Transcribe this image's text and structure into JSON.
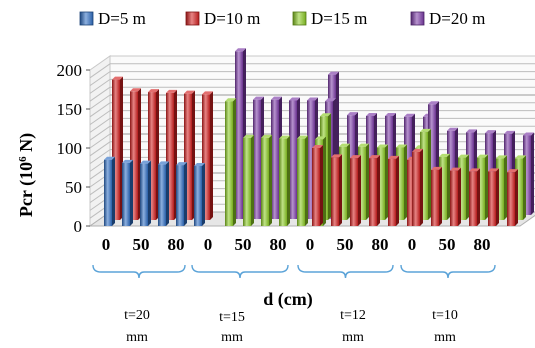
{
  "chart_data": {
    "type": "bar",
    "title": "",
    "xlabel": "d (cm)",
    "ylabel": "Pcr",
    "ylabel_unit": "(10",
    "ylabel_exp": "6",
    "ylabel_unit_end": " N)",
    "ylim": [
      0,
      200
    ],
    "yticks": [
      "0",
      "50",
      "100",
      "150",
      "200"
    ],
    "grid": true,
    "legend_position": "top",
    "x_tick_labels": [
      "0",
      "50",
      "80",
      "0",
      "50",
      "80",
      "0",
      "50",
      "80",
      "0",
      "50",
      "80"
    ],
    "groups": [
      {
        "label_line1": "t=20",
        "label_line2": "mm"
      },
      {
        "label_line1": "t=15",
        "label_line2": "mm"
      },
      {
        "label_line1": "t=12",
        "label_line2": "mm"
      },
      {
        "label_line1": "t=10",
        "label_line2": "mm"
      }
    ],
    "series": [
      {
        "name": "D=5 m",
        "color": "#2f6fc4",
        "values": [
          85,
          81,
          80,
          79,
          78,
          77,
          null,
          null,
          null,
          null,
          null,
          null,
          null,
          null,
          null,
          null,
          null,
          null,
          null,
          null,
          null,
          null,
          null,
          null
        ]
      },
      {
        "name": "D=10 m",
        "color": "#d42020",
        "values": [
          180,
          165,
          164,
          163,
          162,
          161,
          null,
          null,
          null,
          null,
          null,
          null,
          100,
          88,
          87,
          87,
          86,
          85,
          95,
          72,
          71,
          70,
          70,
          69
        ]
      },
      {
        "name": "D=15 m",
        "color": "#8ccc24",
        "values": [
          null,
          null,
          null,
          null,
          null,
          null,
          160,
          113,
          113,
          112,
          112,
          111,
          133,
          94,
          94,
          93,
          93,
          92,
          113,
          81,
          80,
          80,
          79,
          79
        ]
      },
      {
        "name": "D=20 m",
        "color": "#7c3aa8",
        "values": [
          null,
          null,
          null,
          null,
          null,
          null,
          215,
          153,
          153,
          152,
          152,
          151,
          180,
          128,
          127,
          127,
          126,
          126,
          142,
          108,
          106,
          105,
          104,
          102
        ]
      }
    ]
  }
}
